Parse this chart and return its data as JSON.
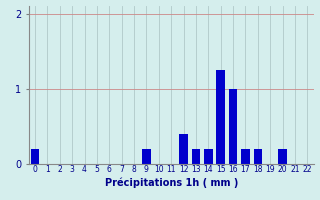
{
  "hours": [
    0,
    1,
    2,
    3,
    4,
    5,
    6,
    7,
    8,
    9,
    10,
    11,
    12,
    13,
    14,
    15,
    16,
    17,
    18,
    19,
    20,
    21,
    22
  ],
  "values": [
    0.2,
    0,
    0,
    0,
    0,
    0,
    0,
    0,
    0,
    0.2,
    0,
    0,
    0.4,
    0.2,
    0.2,
    1.25,
    1.0,
    0.2,
    0.2,
    0,
    0.2,
    0,
    0
  ],
  "bar_color": "#0000cc",
  "background_color": "#d5eeed",
  "grid_color": "#b0c8c8",
  "xlabel": "Précipitations 1h ( mm )",
  "xlabel_color": "#00008b",
  "tick_color": "#00008b",
  "ylim": [
    0,
    2.1
  ],
  "yticks": [
    0,
    1,
    2
  ],
  "title": ""
}
